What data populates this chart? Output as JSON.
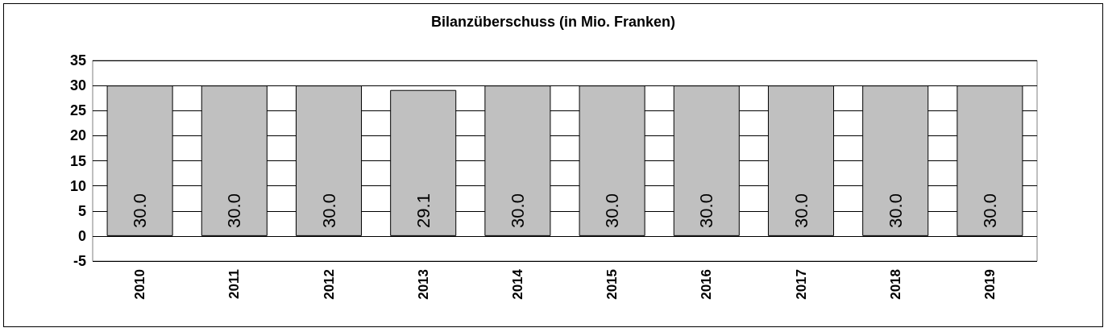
{
  "chart_data": {
    "type": "bar",
    "title": "Bilanzüberschuss (in Mio. Franken)",
    "categories": [
      "2010",
      "2011",
      "2012",
      "2013",
      "2014",
      "2015",
      "2016",
      "2017",
      "2018",
      "2019"
    ],
    "values": [
      30.0,
      30.0,
      30.0,
      29.1,
      30.0,
      30.0,
      30.0,
      30.0,
      30.0,
      30.0
    ],
    "value_labels": [
      "30.0",
      "30.0",
      "30.0",
      "29.1",
      "30.0",
      "30.0",
      "30.0",
      "30.0",
      "30.0",
      "30.0"
    ],
    "color": "#c0c0c0",
    "ylim": [
      -5,
      35
    ],
    "yticks": [
      -5,
      0,
      5,
      10,
      15,
      20,
      25,
      30,
      35
    ],
    "grid": "y",
    "legend": false
  }
}
